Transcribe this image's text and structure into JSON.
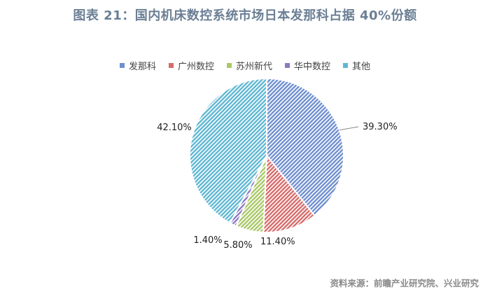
{
  "chart_data": {
    "type": "pie",
    "title": "图表 21：国内机床数控系统市场日本发那科占据 40%份额",
    "categories": [
      "发那科",
      "广州数控",
      "苏州新代",
      "华中数控",
      "其他"
    ],
    "values": [
      39.3,
      11.4,
      5.8,
      1.4,
      42.1
    ],
    "value_labels": [
      "39.30%",
      "11.40%",
      "5.80%",
      "1.40%",
      "42.10%"
    ],
    "colors": [
      "#6f8fd0",
      "#d86a6a",
      "#a9c867",
      "#8f78c2",
      "#5fb7d3"
    ],
    "legend_position": "top"
  },
  "source": "资料来源：前瞻产业研究院、兴业研究"
}
